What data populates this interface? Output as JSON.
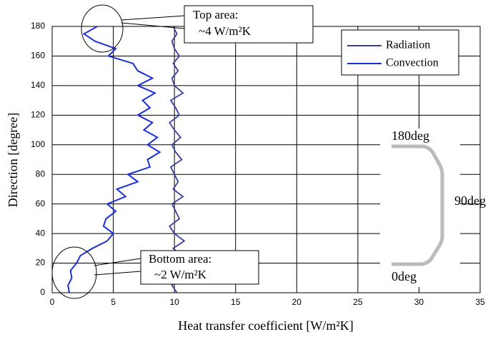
{
  "chart_data": {
    "type": "line",
    "xlabel": "Heat transfer coefficient [W/m²K]",
    "ylabel": "Direction [degree]",
    "y": [
      0,
      5,
      10,
      15,
      20,
      25,
      30,
      35,
      40,
      45,
      50,
      55,
      60,
      65,
      70,
      75,
      80,
      85,
      90,
      95,
      100,
      105,
      110,
      115,
      120,
      125,
      130,
      135,
      140,
      145,
      150,
      155,
      160,
      165,
      170,
      175,
      180
    ],
    "series": [
      {
        "name": "Radiation",
        "color": "#3b3f9c",
        "values": [
          10.2,
          9.8,
          10.5,
          10.0,
          9.7,
          10.6,
          9.9,
          10.8,
          10.0,
          9.6,
          10.4,
          10.1,
          9.8,
          10.7,
          9.9,
          10.3,
          10.0,
          9.7,
          10.6,
          10.1,
          9.8,
          10.5,
          10.0,
          9.6,
          10.4,
          10.1,
          9.7,
          10.7,
          10.0,
          9.8,
          10.3,
          9.9,
          10.4,
          10.0,
          9.8,
          10.2,
          9.9
        ]
      },
      {
        "name": "Convection",
        "color": "#1a2fd6",
        "values": [
          1.4,
          1.3,
          1.6,
          1.5,
          2.0,
          2.3,
          3.3,
          4.5,
          5.0,
          4.2,
          4.4,
          5.2,
          4.5,
          6.0,
          5.3,
          7.0,
          6.2,
          8.0,
          7.8,
          8.8,
          7.8,
          8.6,
          7.5,
          8.2,
          7.0,
          8.0,
          7.4,
          8.4,
          7.0,
          8.2,
          7.0,
          6.6,
          4.6,
          5.2,
          3.5,
          2.6,
          3.7
        ]
      }
    ],
    "xlim": [
      0,
      35
    ],
    "xticks": [
      0,
      5,
      10,
      15,
      20,
      25,
      30,
      35
    ],
    "ylim": [
      0,
      180
    ],
    "yticks": [
      0,
      20,
      40,
      60,
      80,
      100,
      120,
      140,
      160,
      180
    ],
    "grid": true,
    "legend": "upper right",
    "annotations": [
      {
        "lines": [
          "Top area:",
          "~4 W/m²K"
        ]
      },
      {
        "lines": [
          "Bottom area:",
          "~2 W/m²K"
        ]
      }
    ],
    "inset_labels": [
      "180deg",
      "90deg",
      "0deg"
    ]
  }
}
